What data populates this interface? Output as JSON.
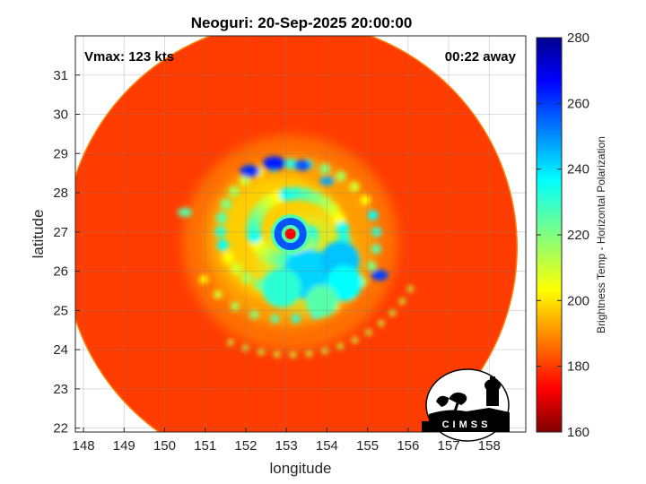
{
  "chart_data": {
    "type": "heatmap",
    "title": "Neoguri: 20-Sep-2025 20:00:00",
    "xlabel": "longitude",
    "ylabel": "latitude",
    "xlim": [
      147.8,
      158.9
    ],
    "ylim": [
      21.9,
      32.0
    ],
    "xticks": [
      148,
      149,
      150,
      151,
      152,
      153,
      154,
      155,
      156,
      157,
      158
    ],
    "yticks": [
      22,
      23,
      24,
      25,
      26,
      27,
      28,
      29,
      30,
      31
    ],
    "grid": true,
    "annotations": {
      "left": "Vmax: 123 kts",
      "right": "00:22 away"
    },
    "colorbar": {
      "label": "Brightness Temp - Horizontal Polarization",
      "min": 160,
      "max": 280,
      "ticks": [
        160,
        180,
        200,
        220,
        240,
        260,
        280
      ],
      "colormap": "jet"
    },
    "swath": {
      "center": [
        153.1,
        26.6
      ],
      "radius_deg": 5.6
    },
    "storm_center": [
      153.1,
      26.95
    ],
    "eye_temperature": 265,
    "eyewall_temperature": 185,
    "logo_text": "CIMSS"
  }
}
